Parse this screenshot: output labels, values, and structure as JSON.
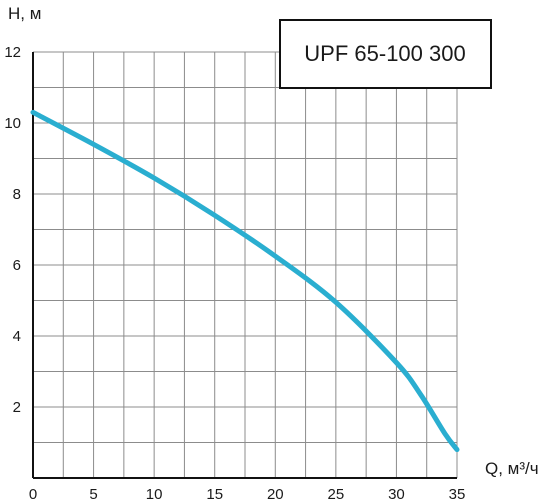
{
  "chart_data": {
    "type": "line",
    "title": "UPF 65-100 300",
    "xlabel": "Q, м³/ч",
    "ylabel": "H, м",
    "xlim": [
      0,
      35
    ],
    "ylim": [
      0,
      12
    ],
    "xticks": [
      0,
      5,
      10,
      15,
      20,
      25,
      30,
      35
    ],
    "yticks": [
      2,
      4,
      6,
      8,
      10,
      12
    ],
    "grid": true,
    "series": [
      {
        "color": "#2aaed0",
        "x": [
          0,
          5,
          10,
          15,
          20,
          25,
          30,
          32,
          34,
          35
        ],
        "y": [
          10.3,
          9.4,
          8.45,
          7.4,
          6.25,
          4.95,
          3.25,
          2.35,
          1.25,
          0.8
        ]
      }
    ]
  }
}
